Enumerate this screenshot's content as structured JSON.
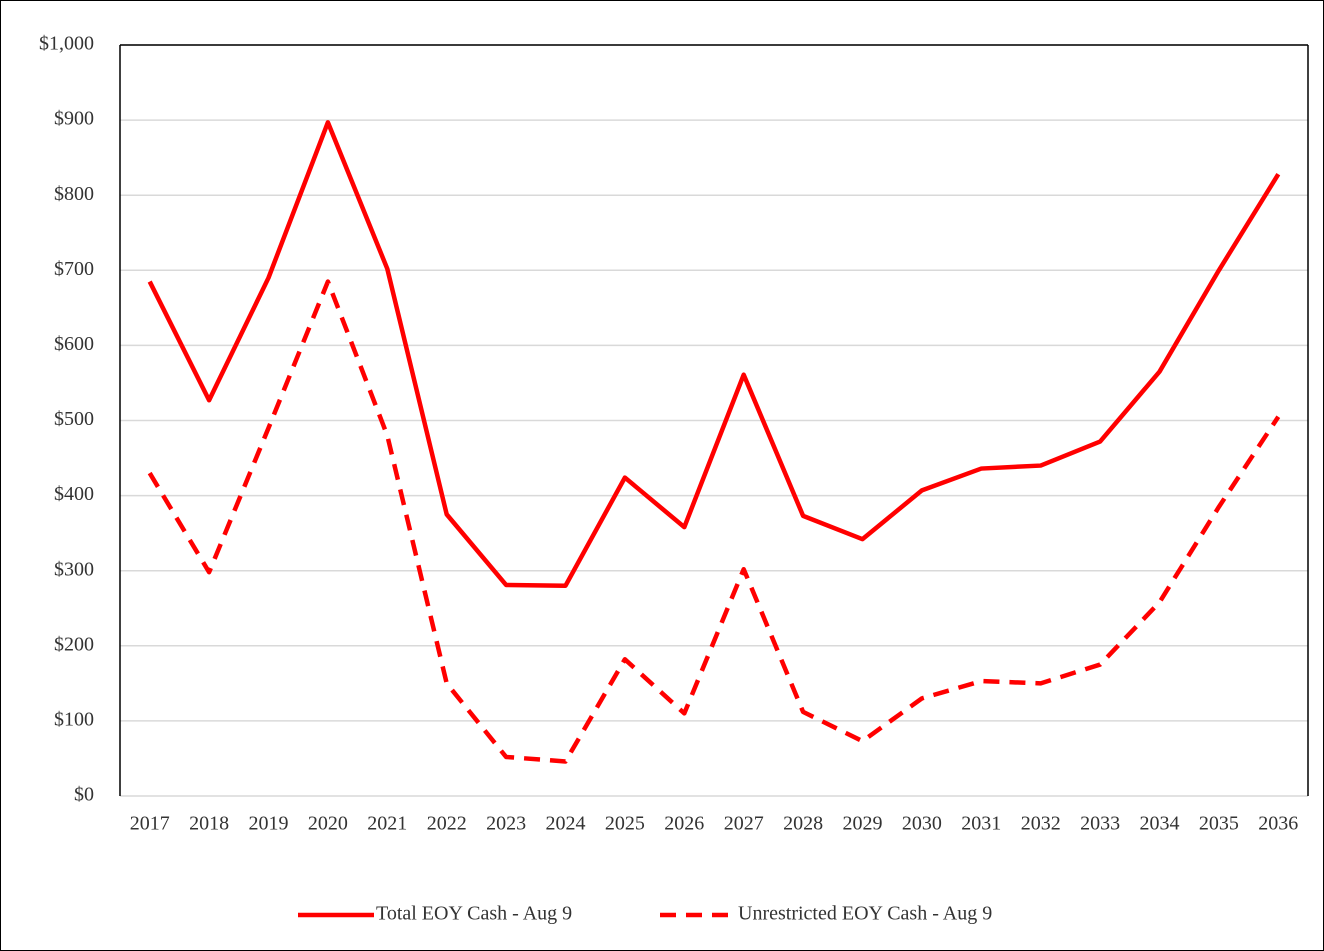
{
  "chart_data": {
    "type": "line",
    "categories": [
      "2017",
      "2018",
      "2019",
      "2020",
      "2021",
      "2022",
      "2023",
      "2024",
      "2025",
      "2026",
      "2027",
      "2028",
      "2029",
      "2030",
      "2031",
      "2032",
      "2033",
      "2034",
      "2035",
      "2036"
    ],
    "series": [
      {
        "name": "Total EOY Cash - Aug 9",
        "color": "#ff0000",
        "line_style": "solid",
        "values": [
          685,
          527,
          690,
          897,
          702,
          375,
          281,
          280,
          424,
          358,
          561,
          373,
          342,
          407,
          436,
          440,
          472,
          565,
          700,
          828
        ]
      },
      {
        "name": "Unrestricted EOY Cash - Aug 9",
        "color": "#ff0000",
        "line_style": "dashed",
        "values": [
          430,
          298,
          490,
          685,
          480,
          150,
          52,
          46,
          182,
          110,
          302,
          112,
          73,
          130,
          153,
          150,
          175,
          258,
          385,
          505
        ]
      }
    ],
    "ylim": [
      0,
      1000
    ],
    "yticks": [
      {
        "value": 0,
        "label": "$0"
      },
      {
        "value": 100,
        "label": "$100"
      },
      {
        "value": 200,
        "label": "$200"
      },
      {
        "value": 300,
        "label": "$300"
      },
      {
        "value": 400,
        "label": "$400"
      },
      {
        "value": 500,
        "label": "$500"
      },
      {
        "value": 600,
        "label": "$600"
      },
      {
        "value": 700,
        "label": "$700"
      },
      {
        "value": 800,
        "label": "$800"
      },
      {
        "value": 900,
        "label": "$900"
      },
      {
        "value": 1000,
        "label": "$1,000"
      }
    ],
    "grid": true,
    "legend": "bottom"
  }
}
